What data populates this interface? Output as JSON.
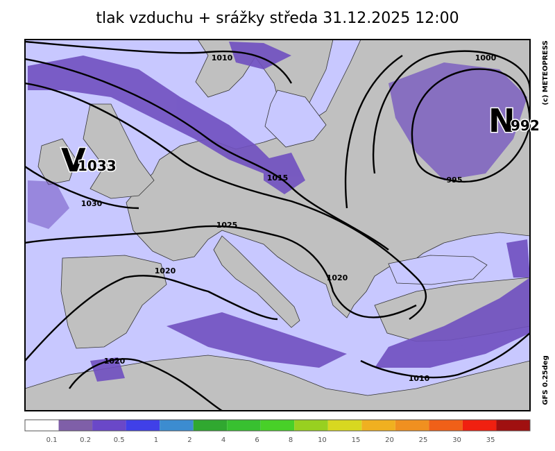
{
  "title": "tlak vzduchu + srážky  středa 31.12.2025 12:00",
  "credit": "(c) METEOPRESS",
  "model": "GFS 0.25deg",
  "centers": [
    {
      "letter": "V",
      "pressure": "1033"
    },
    {
      "letter": "N",
      "pressure": "992"
    }
  ],
  "isobar_labels": [
    "1010",
    "1000",
    "1015",
    "1030",
    "1025",
    "1020",
    "1020",
    "1020",
    "1010",
    "995"
  ],
  "legend": {
    "colors": [
      "#ffffff",
      "#7f5fa8",
      "#6a48c8",
      "#4040e8",
      "#3c8cd0",
      "#30a830",
      "#38c030",
      "#48d028",
      "#98d020",
      "#d8d820",
      "#f0b020",
      "#f09020",
      "#f06018",
      "#f02010",
      "#a01010"
    ],
    "labels": [
      0.1,
      0.2,
      0.5,
      1,
      2,
      4,
      6,
      8,
      10,
      15,
      20,
      25,
      30,
      35
    ]
  }
}
